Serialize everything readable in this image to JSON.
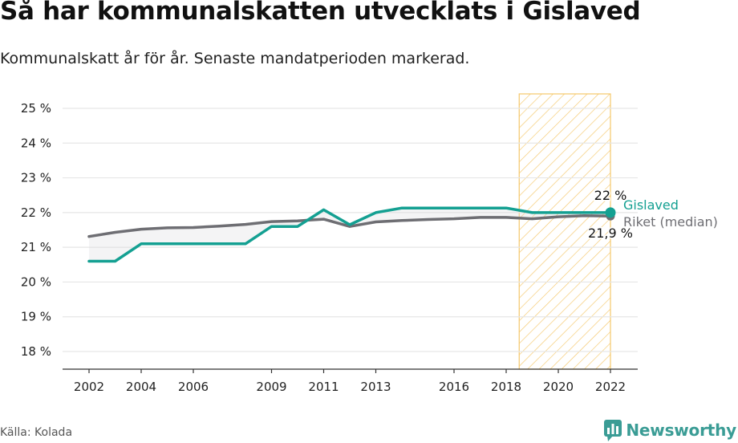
{
  "title": "Så har kommunalskatten utvecklats i Gislaved",
  "subtitle": "Kommunalskatt år för år. Senaste mandatperioden markerad.",
  "source": "Källa: Kolada",
  "brand": "Newsworthy",
  "colors": {
    "gislaved": "#14a092",
    "riket": "#6e6e73",
    "highlight": "#f5c76b",
    "grid": "#e6e6e6"
  },
  "chart_data": {
    "type": "line",
    "x": [
      2002,
      2003,
      2004,
      2005,
      2006,
      2007,
      2008,
      2009,
      2010,
      2011,
      2012,
      2013,
      2014,
      2015,
      2016,
      2017,
      2018,
      2019,
      2020,
      2021,
      2022
    ],
    "series": [
      {
        "name": "Gislaved",
        "color": "#14a092",
        "values": [
          20.6,
          20.6,
          21.1,
          21.1,
          21.1,
          21.1,
          21.1,
          21.6,
          21.6,
          22.08,
          21.65,
          22.0,
          22.13,
          22.13,
          22.13,
          22.13,
          22.13,
          22.0,
          22.0,
          22.0,
          22.0
        ]
      },
      {
        "name": "Riket (median)",
        "color": "#6e6e73",
        "values": [
          21.31,
          21.43,
          21.52,
          21.56,
          21.57,
          21.61,
          21.66,
          21.74,
          21.76,
          21.81,
          21.6,
          21.73,
          21.77,
          21.8,
          21.82,
          21.86,
          21.86,
          21.82,
          21.88,
          21.91,
          21.9
        ]
      }
    ],
    "end_labels": {
      "gislaved": "22 %",
      "riket": "21,9 %"
    },
    "y_ticks": [
      "18 %",
      "19 %",
      "20 %",
      "21 %",
      "22 %",
      "23 %",
      "24 %",
      "25 %"
    ],
    "y_tick_values": [
      18,
      19,
      20,
      21,
      22,
      23,
      24,
      25
    ],
    "x_ticks": [
      "2002",
      "2004",
      "2006",
      "2009",
      "2011",
      "2013",
      "2016",
      "2018",
      "2020",
      "2022"
    ],
    "x_tick_values": [
      2002,
      2004,
      2006,
      2009,
      2011,
      2013,
      2016,
      2018,
      2020,
      2022
    ],
    "xlim": [
      2001,
      2023
    ],
    "ylim": [
      17.55,
      25.4
    ],
    "highlight_range": [
      2018.5,
      2022
    ],
    "grid": true,
    "xlabel": "",
    "ylabel": ""
  }
}
